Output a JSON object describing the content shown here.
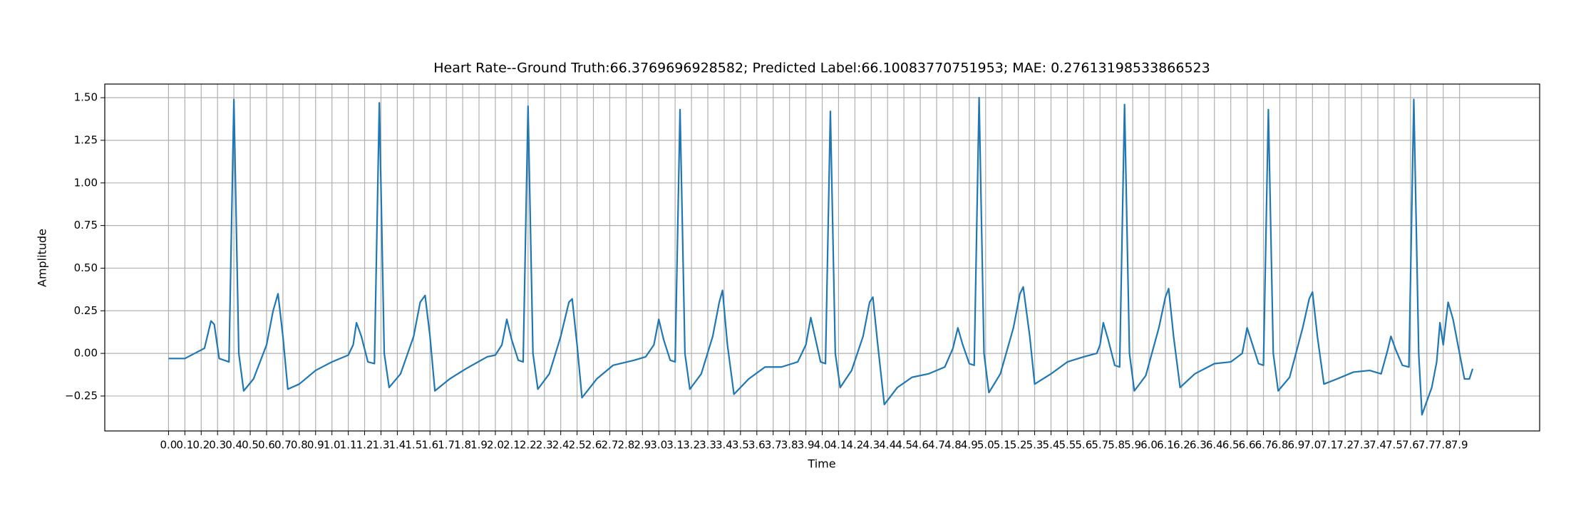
{
  "chart_data": {
    "type": "line",
    "title": "Heart Rate--Ground Truth:66.3769696928582; Predicted Label:66.10083770751953; MAE: 0.27613198533866523",
    "xlabel": "Time",
    "ylabel": "Amplitude",
    "color": "#1f77b4",
    "grid": true,
    "xlim": [
      -0.39,
      8.39
    ],
    "ylim": [
      -0.455,
      1.58
    ],
    "yticks": [
      {
        "value": -0.25,
        "label": "−0.25"
      },
      {
        "value": 0,
        "label": "0.00"
      },
      0.25,
      {
        "value": 0.5,
        "label": "0.50"
      },
      0.75,
      {
        "value": 1,
        "label": "1.00"
      },
      1.25,
      {
        "value": 1.5,
        "label": "1.50"
      }
    ],
    "xticks": [
      {
        "value": 0,
        "label": "0.0"
      },
      0.1,
      0.2,
      0.3,
      0.4,
      0.5,
      0.6,
      0.7,
      0.8,
      0.9,
      {
        "value": 1,
        "label": "1.0"
      },
      1.1,
      1.2,
      1.3,
      1.4,
      1.5,
      1.6,
      1.7,
      1.8,
      1.9,
      {
        "value": 2,
        "label": "2.0"
      },
      2.1,
      2.2,
      2.3,
      2.4,
      2.5,
      2.6,
      2.7,
      2.8,
      2.9,
      {
        "value": 3,
        "label": "3.0"
      },
      3.1,
      3.2,
      3.3,
      3.4,
      3.5,
      3.6,
      3.7,
      3.8,
      3.9,
      {
        "value": 4,
        "label": "4.0"
      },
      4.1,
      4.2,
      4.3,
      4.4,
      4.5,
      4.6,
      4.7,
      4.8,
      4.9,
      {
        "value": 5,
        "label": "5.0"
      },
      5.1,
      5.2,
      5.3,
      5.4,
      5.5,
      5.6,
      5.7,
      5.8,
      5.9,
      {
        "value": 6,
        "label": "6.0"
      },
      6.1,
      6.2,
      6.3,
      6.4,
      6.5,
      6.6,
      6.7,
      6.8,
      6.9,
      {
        "value": 7,
        "label": "7.0"
      },
      7.1,
      7.2,
      7.3,
      7.4,
      7.5,
      7.6,
      7.7,
      7.8,
      7.9
    ],
    "x": [
      0.0,
      0.1,
      0.2,
      0.22,
      0.26,
      0.28,
      0.31,
      0.37,
      0.4,
      0.43,
      0.46,
      0.52,
      0.6,
      0.64,
      0.67,
      0.7,
      0.73,
      0.8,
      0.9,
      1.0,
      1.1,
      1.13,
      1.15,
      1.18,
      1.22,
      1.26,
      1.29,
      1.32,
      1.35,
      1.42,
      1.5,
      1.54,
      1.57,
      1.6,
      1.63,
      1.72,
      1.82,
      1.95,
      2.0,
      2.04,
      2.07,
      2.1,
      2.14,
      2.17,
      2.2,
      2.23,
      2.26,
      2.33,
      2.4,
      2.45,
      2.47,
      2.5,
      2.53,
      2.62,
      2.72,
      2.85,
      2.92,
      2.97,
      3.0,
      3.03,
      3.07,
      3.1,
      3.13,
      3.16,
      3.19,
      3.26,
      3.33,
      3.37,
      3.39,
      3.42,
      3.46,
      3.55,
      3.65,
      3.75,
      3.85,
      3.9,
      3.93,
      3.96,
      3.99,
      4.02,
      4.05,
      4.08,
      4.11,
      4.18,
      4.25,
      4.29,
      4.31,
      4.34,
      4.38,
      4.46,
      4.55,
      4.65,
      4.75,
      4.8,
      4.83,
      4.86,
      4.9,
      4.93,
      4.96,
      4.99,
      5.02,
      5.09,
      5.17,
      5.21,
      5.23,
      5.27,
      5.3,
      5.4,
      5.5,
      5.6,
      5.68,
      5.7,
      5.72,
      5.75,
      5.79,
      5.82,
      5.85,
      5.88,
      5.91,
      5.98,
      6.06,
      6.1,
      6.12,
      6.15,
      6.19,
      6.28,
      6.4,
      6.5,
      6.57,
      6.58,
      6.6,
      6.63,
      6.67,
      6.7,
      6.73,
      6.76,
      6.79,
      6.86,
      6.94,
      6.98,
      7.0,
      7.03,
      7.07,
      7.15,
      7.25,
      7.35,
      7.42,
      7.46,
      7.48,
      7.51,
      7.55,
      7.59,
      7.62,
      7.65,
      7.67,
      7.7,
      7.73,
      7.76,
      7.78,
      7.8,
      7.83,
      7.86,
      7.9,
      7.93,
      7.96,
      7.98
    ],
    "values": [
      -0.03,
      -0.03,
      0.02,
      0.03,
      0.19,
      0.17,
      -0.03,
      -0.05,
      1.49,
      0.0,
      -0.22,
      -0.15,
      0.05,
      0.25,
      0.35,
      0.1,
      -0.21,
      -0.18,
      -0.1,
      -0.05,
      -0.01,
      0.05,
      0.18,
      0.1,
      -0.05,
      -0.06,
      1.47,
      0.0,
      -0.2,
      -0.12,
      0.1,
      0.3,
      0.34,
      0.1,
      -0.22,
      -0.15,
      -0.09,
      -0.02,
      -0.01,
      0.05,
      0.2,
      0.08,
      -0.04,
      -0.05,
      1.45,
      0.0,
      -0.21,
      -0.12,
      0.1,
      0.3,
      0.32,
      0.05,
      -0.26,
      -0.15,
      -0.07,
      -0.04,
      -0.02,
      0.05,
      0.2,
      0.08,
      -0.04,
      -0.05,
      1.43,
      0.0,
      -0.21,
      -0.12,
      0.1,
      0.3,
      0.37,
      0.05,
      -0.24,
      -0.15,
      -0.08,
      -0.08,
      -0.05,
      0.05,
      0.21,
      0.08,
      -0.05,
      -0.06,
      1.42,
      0.0,
      -0.2,
      -0.1,
      0.1,
      0.3,
      0.33,
      0.05,
      -0.3,
      -0.2,
      -0.14,
      -0.12,
      -0.08,
      0.03,
      0.15,
      0.05,
      -0.06,
      -0.07,
      1.5,
      0.0,
      -0.23,
      -0.12,
      0.15,
      0.35,
      0.39,
      0.1,
      -0.18,
      -0.12,
      -0.05,
      -0.02,
      0.0,
      0.05,
      0.18,
      0.08,
      -0.07,
      -0.08,
      1.46,
      0.0,
      -0.22,
      -0.13,
      0.15,
      0.33,
      0.38,
      0.1,
      -0.2,
      -0.12,
      -0.06,
      -0.05,
      0.0,
      0.05,
      0.15,
      0.06,
      -0.06,
      -0.07,
      1.43,
      0.0,
      -0.22,
      -0.14,
      0.15,
      0.32,
      0.36,
      0.1,
      -0.18,
      -0.15,
      -0.11,
      -0.1,
      -0.12,
      0.02,
      0.1,
      0.02,
      -0.07,
      -0.08,
      1.49,
      0.0,
      -0.36,
      -0.28,
      -0.2,
      -0.05,
      0.18,
      0.05,
      0.3,
      0.2,
      0.0,
      -0.15,
      -0.15,
      -0.09
    ]
  }
}
